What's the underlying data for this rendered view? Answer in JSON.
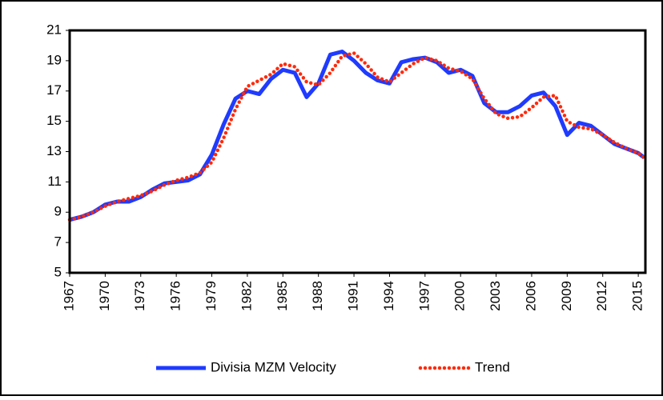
{
  "chart_data": {
    "type": "line",
    "x": [
      1967,
      1968,
      1969,
      1970,
      1971,
      1972,
      1973,
      1974,
      1975,
      1976,
      1977,
      1978,
      1979,
      1980,
      1981,
      1982,
      1983,
      1984,
      1985,
      1986,
      1987,
      1988,
      1989,
      1990,
      1991,
      1992,
      1993,
      1994,
      1995,
      1996,
      1997,
      1998,
      1999,
      2000,
      2001,
      2002,
      2003,
      2004,
      2005,
      2006,
      2007,
      2008,
      2009,
      2010,
      2011,
      2012,
      2013,
      2014,
      2015,
      2015.5
    ],
    "series": [
      {
        "name": "Divisia MZM Velocity",
        "color": "#1f3bff",
        "style": "solid",
        "values": [
          8.5,
          8.7,
          9.0,
          9.5,
          9.7,
          9.7,
          10.0,
          10.5,
          10.9,
          11.0,
          11.1,
          11.5,
          12.8,
          14.8,
          16.5,
          17.0,
          16.8,
          17.8,
          18.4,
          18.2,
          16.6,
          17.5,
          19.4,
          19.6,
          19.0,
          18.2,
          17.7,
          17.5,
          18.9,
          19.1,
          19.2,
          18.9,
          18.2,
          18.4,
          18.0,
          16.2,
          15.6,
          15.6,
          16.0,
          16.7,
          16.9,
          16.0,
          14.1,
          14.9,
          14.7,
          14.1,
          13.5,
          13.2,
          12.9,
          12.6
        ]
      },
      {
        "name": "Trend",
        "color": "#ff2a0a",
        "style": "dotted",
        "values": [
          8.5,
          8.7,
          9.0,
          9.4,
          9.7,
          9.9,
          10.1,
          10.4,
          10.8,
          11.1,
          11.3,
          11.6,
          12.3,
          13.9,
          15.8,
          17.3,
          17.7,
          18.1,
          18.8,
          18.6,
          17.6,
          17.4,
          18.2,
          19.3,
          19.5,
          18.8,
          17.9,
          17.6,
          18.2,
          18.8,
          19.2,
          19.0,
          18.5,
          18.3,
          17.8,
          16.5,
          15.5,
          15.2,
          15.3,
          15.9,
          16.6,
          16.7,
          15.0,
          14.6,
          14.5,
          14.1,
          13.6,
          13.2,
          12.9,
          12.6
        ]
      }
    ],
    "xlim": [
      1967,
      2015.6
    ],
    "xticks": [
      1967,
      1970,
      1973,
      1976,
      1979,
      1982,
      1985,
      1988,
      1991,
      1994,
      1997,
      2000,
      2003,
      2006,
      2009,
      2012,
      2015
    ],
    "ylim": [
      5,
      21
    ],
    "yticks": [
      5,
      7,
      9,
      11,
      13,
      15,
      17,
      19,
      21
    ],
    "legend": "bottom"
  }
}
